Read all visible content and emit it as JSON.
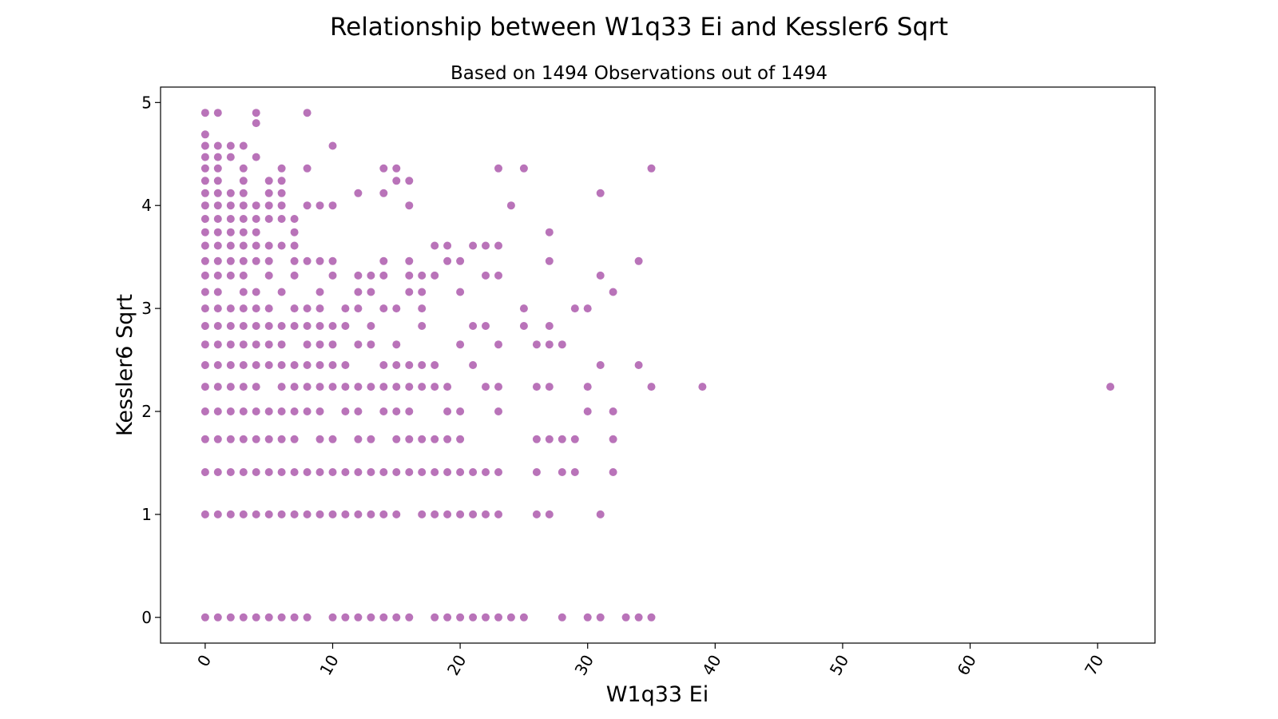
{
  "chart_data": {
    "type": "scatter",
    "title": "Relationship between W1q33 Ei and Kessler6 Sqrt",
    "subtitle": "Based on 1494 Observations out of 1494",
    "xlabel": "W1q33 Ei",
    "ylabel": "Kessler6 Sqrt",
    "xlim": [
      -3.5,
      74.5
    ],
    "ylim": [
      -0.25,
      5.15
    ],
    "xticks": [
      0,
      10,
      20,
      30,
      40,
      50,
      60,
      70
    ],
    "yticks": [
      0,
      1,
      2,
      3,
      4,
      5
    ],
    "grid": false,
    "legend": "none",
    "marker_color": "#800080",
    "marker_alpha": 0.55,
    "points": [
      [
        0,
        4.9
      ],
      [
        1,
        4.9
      ],
      [
        4,
        4.9
      ],
      [
        8,
        4.9
      ],
      [
        4,
        4.8
      ],
      [
        0,
        4.69
      ],
      [
        0,
        4.58
      ],
      [
        1,
        4.58
      ],
      [
        2,
        4.58
      ],
      [
        3,
        4.58
      ],
      [
        10,
        4.58
      ],
      [
        0,
        4.47
      ],
      [
        1,
        4.47
      ],
      [
        2,
        4.47
      ],
      [
        4,
        4.47
      ],
      [
        0,
        4.36
      ],
      [
        1,
        4.36
      ],
      [
        3,
        4.36
      ],
      [
        6,
        4.36
      ],
      [
        8,
        4.36
      ],
      [
        14,
        4.36
      ],
      [
        15,
        4.36
      ],
      [
        23,
        4.36
      ],
      [
        25,
        4.36
      ],
      [
        35,
        4.36
      ],
      [
        0,
        4.24
      ],
      [
        1,
        4.24
      ],
      [
        3,
        4.24
      ],
      [
        5,
        4.24
      ],
      [
        6,
        4.24
      ],
      [
        15,
        4.24
      ],
      [
        16,
        4.24
      ],
      [
        0,
        4.12
      ],
      [
        1,
        4.12
      ],
      [
        2,
        4.12
      ],
      [
        3,
        4.12
      ],
      [
        5,
        4.12
      ],
      [
        6,
        4.12
      ],
      [
        12,
        4.12
      ],
      [
        14,
        4.12
      ],
      [
        31,
        4.12
      ],
      [
        0,
        4.0
      ],
      [
        1,
        4.0
      ],
      [
        2,
        4.0
      ],
      [
        3,
        4.0
      ],
      [
        4,
        4.0
      ],
      [
        5,
        4.0
      ],
      [
        6,
        4.0
      ],
      [
        8,
        4.0
      ],
      [
        9,
        4.0
      ],
      [
        10,
        4.0
      ],
      [
        16,
        4.0
      ],
      [
        24,
        4.0
      ],
      [
        0,
        3.87
      ],
      [
        1,
        3.87
      ],
      [
        2,
        3.87
      ],
      [
        3,
        3.87
      ],
      [
        4,
        3.87
      ],
      [
        5,
        3.87
      ],
      [
        6,
        3.87
      ],
      [
        7,
        3.87
      ],
      [
        0,
        3.74
      ],
      [
        1,
        3.74
      ],
      [
        2,
        3.74
      ],
      [
        3,
        3.74
      ],
      [
        4,
        3.74
      ],
      [
        7,
        3.74
      ],
      [
        27,
        3.74
      ],
      [
        0,
        3.61
      ],
      [
        1,
        3.61
      ],
      [
        2,
        3.61
      ],
      [
        3,
        3.61
      ],
      [
        4,
        3.61
      ],
      [
        5,
        3.61
      ],
      [
        6,
        3.61
      ],
      [
        7,
        3.61
      ],
      [
        18,
        3.61
      ],
      [
        19,
        3.61
      ],
      [
        21,
        3.61
      ],
      [
        22,
        3.61
      ],
      [
        23,
        3.61
      ],
      [
        0,
        3.46
      ],
      [
        1,
        3.46
      ],
      [
        2,
        3.46
      ],
      [
        3,
        3.46
      ],
      [
        4,
        3.46
      ],
      [
        5,
        3.46
      ],
      [
        7,
        3.46
      ],
      [
        8,
        3.46
      ],
      [
        9,
        3.46
      ],
      [
        10,
        3.46
      ],
      [
        14,
        3.46
      ],
      [
        16,
        3.46
      ],
      [
        19,
        3.46
      ],
      [
        20,
        3.46
      ],
      [
        27,
        3.46
      ],
      [
        34,
        3.46
      ],
      [
        0,
        3.32
      ],
      [
        1,
        3.32
      ],
      [
        2,
        3.32
      ],
      [
        3,
        3.32
      ],
      [
        5,
        3.32
      ],
      [
        7,
        3.32
      ],
      [
        10,
        3.32
      ],
      [
        12,
        3.32
      ],
      [
        13,
        3.32
      ],
      [
        14,
        3.32
      ],
      [
        16,
        3.32
      ],
      [
        17,
        3.32
      ],
      [
        18,
        3.32
      ],
      [
        22,
        3.32
      ],
      [
        23,
        3.32
      ],
      [
        31,
        3.32
      ],
      [
        0,
        3.16
      ],
      [
        1,
        3.16
      ],
      [
        3,
        3.16
      ],
      [
        4,
        3.16
      ],
      [
        6,
        3.16
      ],
      [
        9,
        3.16
      ],
      [
        12,
        3.16
      ],
      [
        13,
        3.16
      ],
      [
        16,
        3.16
      ],
      [
        17,
        3.16
      ],
      [
        20,
        3.16
      ],
      [
        32,
        3.16
      ],
      [
        0,
        3.0
      ],
      [
        1,
        3.0
      ],
      [
        2,
        3.0
      ],
      [
        3,
        3.0
      ],
      [
        4,
        3.0
      ],
      [
        5,
        3.0
      ],
      [
        7,
        3.0
      ],
      [
        8,
        3.0
      ],
      [
        9,
        3.0
      ],
      [
        11,
        3.0
      ],
      [
        12,
        3.0
      ],
      [
        14,
        3.0
      ],
      [
        15,
        3.0
      ],
      [
        17,
        3.0
      ],
      [
        25,
        3.0
      ],
      [
        29,
        3.0
      ],
      [
        30,
        3.0
      ],
      [
        0,
        2.83
      ],
      [
        1,
        2.83
      ],
      [
        2,
        2.83
      ],
      [
        3,
        2.83
      ],
      [
        4,
        2.83
      ],
      [
        5,
        2.83
      ],
      [
        6,
        2.83
      ],
      [
        7,
        2.83
      ],
      [
        8,
        2.83
      ],
      [
        9,
        2.83
      ],
      [
        10,
        2.83
      ],
      [
        11,
        2.83
      ],
      [
        13,
        2.83
      ],
      [
        17,
        2.83
      ],
      [
        21,
        2.83
      ],
      [
        22,
        2.83
      ],
      [
        25,
        2.83
      ],
      [
        27,
        2.83
      ],
      [
        0,
        2.65
      ],
      [
        1,
        2.65
      ],
      [
        2,
        2.65
      ],
      [
        3,
        2.65
      ],
      [
        4,
        2.65
      ],
      [
        5,
        2.65
      ],
      [
        6,
        2.65
      ],
      [
        8,
        2.65
      ],
      [
        9,
        2.65
      ],
      [
        10,
        2.65
      ],
      [
        12,
        2.65
      ],
      [
        13,
        2.65
      ],
      [
        15,
        2.65
      ],
      [
        20,
        2.65
      ],
      [
        23,
        2.65
      ],
      [
        26,
        2.65
      ],
      [
        27,
        2.65
      ],
      [
        28,
        2.65
      ],
      [
        0,
        2.45
      ],
      [
        1,
        2.45
      ],
      [
        2,
        2.45
      ],
      [
        3,
        2.45
      ],
      [
        4,
        2.45
      ],
      [
        5,
        2.45
      ],
      [
        6,
        2.45
      ],
      [
        7,
        2.45
      ],
      [
        8,
        2.45
      ],
      [
        9,
        2.45
      ],
      [
        10,
        2.45
      ],
      [
        11,
        2.45
      ],
      [
        14,
        2.45
      ],
      [
        15,
        2.45
      ],
      [
        16,
        2.45
      ],
      [
        17,
        2.45
      ],
      [
        18,
        2.45
      ],
      [
        21,
        2.45
      ],
      [
        31,
        2.45
      ],
      [
        34,
        2.45
      ],
      [
        0,
        2.24
      ],
      [
        1,
        2.24
      ],
      [
        2,
        2.24
      ],
      [
        3,
        2.24
      ],
      [
        4,
        2.24
      ],
      [
        6,
        2.24
      ],
      [
        7,
        2.24
      ],
      [
        8,
        2.24
      ],
      [
        9,
        2.24
      ],
      [
        10,
        2.24
      ],
      [
        11,
        2.24
      ],
      [
        12,
        2.24
      ],
      [
        13,
        2.24
      ],
      [
        14,
        2.24
      ],
      [
        15,
        2.24
      ],
      [
        16,
        2.24
      ],
      [
        17,
        2.24
      ],
      [
        18,
        2.24
      ],
      [
        19,
        2.24
      ],
      [
        22,
        2.24
      ],
      [
        23,
        2.24
      ],
      [
        26,
        2.24
      ],
      [
        27,
        2.24
      ],
      [
        30,
        2.24
      ],
      [
        35,
        2.24
      ],
      [
        39,
        2.24
      ],
      [
        71,
        2.24
      ],
      [
        0,
        2.0
      ],
      [
        1,
        2.0
      ],
      [
        2,
        2.0
      ],
      [
        3,
        2.0
      ],
      [
        4,
        2.0
      ],
      [
        5,
        2.0
      ],
      [
        6,
        2.0
      ],
      [
        7,
        2.0
      ],
      [
        8,
        2.0
      ],
      [
        9,
        2.0
      ],
      [
        11,
        2.0
      ],
      [
        12,
        2.0
      ],
      [
        14,
        2.0
      ],
      [
        15,
        2.0
      ],
      [
        16,
        2.0
      ],
      [
        19,
        2.0
      ],
      [
        20,
        2.0
      ],
      [
        23,
        2.0
      ],
      [
        30,
        2.0
      ],
      [
        32,
        2.0
      ],
      [
        0,
        1.73
      ],
      [
        1,
        1.73
      ],
      [
        2,
        1.73
      ],
      [
        3,
        1.73
      ],
      [
        4,
        1.73
      ],
      [
        5,
        1.73
      ],
      [
        6,
        1.73
      ],
      [
        7,
        1.73
      ],
      [
        9,
        1.73
      ],
      [
        10,
        1.73
      ],
      [
        12,
        1.73
      ],
      [
        13,
        1.73
      ],
      [
        15,
        1.73
      ],
      [
        16,
        1.73
      ],
      [
        17,
        1.73
      ],
      [
        18,
        1.73
      ],
      [
        19,
        1.73
      ],
      [
        20,
        1.73
      ],
      [
        26,
        1.73
      ],
      [
        27,
        1.73
      ],
      [
        28,
        1.73
      ],
      [
        29,
        1.73
      ],
      [
        32,
        1.73
      ],
      [
        0,
        1.41
      ],
      [
        1,
        1.41
      ],
      [
        2,
        1.41
      ],
      [
        3,
        1.41
      ],
      [
        4,
        1.41
      ],
      [
        5,
        1.41
      ],
      [
        6,
        1.41
      ],
      [
        7,
        1.41
      ],
      [
        8,
        1.41
      ],
      [
        9,
        1.41
      ],
      [
        10,
        1.41
      ],
      [
        11,
        1.41
      ],
      [
        12,
        1.41
      ],
      [
        13,
        1.41
      ],
      [
        14,
        1.41
      ],
      [
        15,
        1.41
      ],
      [
        16,
        1.41
      ],
      [
        17,
        1.41
      ],
      [
        18,
        1.41
      ],
      [
        19,
        1.41
      ],
      [
        20,
        1.41
      ],
      [
        21,
        1.41
      ],
      [
        22,
        1.41
      ],
      [
        23,
        1.41
      ],
      [
        26,
        1.41
      ],
      [
        28,
        1.41
      ],
      [
        29,
        1.41
      ],
      [
        32,
        1.41
      ],
      [
        0,
        1.0
      ],
      [
        1,
        1.0
      ],
      [
        2,
        1.0
      ],
      [
        3,
        1.0
      ],
      [
        4,
        1.0
      ],
      [
        5,
        1.0
      ],
      [
        6,
        1.0
      ],
      [
        7,
        1.0
      ],
      [
        8,
        1.0
      ],
      [
        9,
        1.0
      ],
      [
        10,
        1.0
      ],
      [
        11,
        1.0
      ],
      [
        12,
        1.0
      ],
      [
        13,
        1.0
      ],
      [
        14,
        1.0
      ],
      [
        15,
        1.0
      ],
      [
        17,
        1.0
      ],
      [
        18,
        1.0
      ],
      [
        19,
        1.0
      ],
      [
        20,
        1.0
      ],
      [
        21,
        1.0
      ],
      [
        22,
        1.0
      ],
      [
        23,
        1.0
      ],
      [
        26,
        1.0
      ],
      [
        27,
        1.0
      ],
      [
        31,
        1.0
      ],
      [
        0,
        0.0
      ],
      [
        1,
        0.0
      ],
      [
        2,
        0.0
      ],
      [
        3,
        0.0
      ],
      [
        4,
        0.0
      ],
      [
        5,
        0.0
      ],
      [
        6,
        0.0
      ],
      [
        7,
        0.0
      ],
      [
        8,
        0.0
      ],
      [
        10,
        0.0
      ],
      [
        11,
        0.0
      ],
      [
        12,
        0.0
      ],
      [
        13,
        0.0
      ],
      [
        14,
        0.0
      ],
      [
        15,
        0.0
      ],
      [
        16,
        0.0
      ],
      [
        18,
        0.0
      ],
      [
        19,
        0.0
      ],
      [
        20,
        0.0
      ],
      [
        21,
        0.0
      ],
      [
        22,
        0.0
      ],
      [
        23,
        0.0
      ],
      [
        24,
        0.0
      ],
      [
        25,
        0.0
      ],
      [
        28,
        0.0
      ],
      [
        30,
        0.0
      ],
      [
        31,
        0.0
      ],
      [
        33,
        0.0
      ],
      [
        34,
        0.0
      ],
      [
        35,
        0.0
      ]
    ]
  }
}
